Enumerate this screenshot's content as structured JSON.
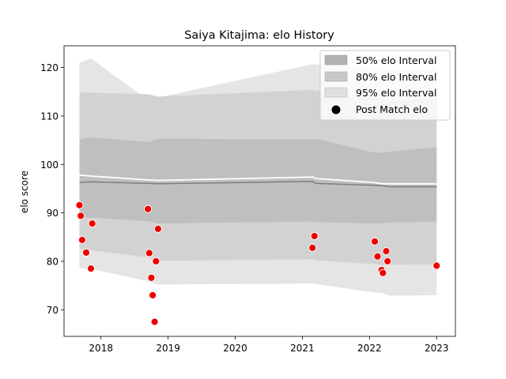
{
  "chart_data": {
    "type": "area",
    "title": "Saiya Kitajima: elo History",
    "xlabel": "",
    "ylabel": "elo score",
    "xlim": [
      2017.45,
      2023.28
    ],
    "ylim": [
      64.5,
      124.5
    ],
    "x_ticks": [
      2018,
      2019,
      2020,
      2021,
      2022,
      2023
    ],
    "x_tick_labels": [
      "2018",
      "2019",
      "2020",
      "2021",
      "2022",
      "2023"
    ],
    "y_ticks": [
      70,
      80,
      90,
      100,
      110,
      120
    ],
    "y_tick_labels": [
      "70",
      "80",
      "90",
      "100",
      "110",
      "120"
    ],
    "grid": false,
    "legend_position": "top-right",
    "x": [
      2017.68,
      2017.85,
      2018.7,
      2018.85,
      2021.15,
      2021.2,
      2022.05,
      2022.2,
      2022.3,
      2023.0
    ],
    "bands": [
      {
        "name": "95% elo Interval",
        "color": "#e5e5e5",
        "lower": [
          78.6,
          78.4,
          75.9,
          75.2,
          75.4,
          75.3,
          73.6,
          73.4,
          72.9,
          73.0
        ],
        "upper": [
          121.0,
          121.9,
          113.3,
          113.8,
          120.7,
          120.6,
          119.8,
          119.7,
          119.6,
          119.7
        ]
      },
      {
        "name": "80% elo Interval",
        "color": "#d2d2d2",
        "lower": [
          82.6,
          82.3,
          80.8,
          80.1,
          80.4,
          80.2,
          79.4,
          79.2,
          79.3,
          79.4
        ],
        "upper": [
          114.9,
          114.8,
          114.5,
          114.0,
          115.4,
          115.2,
          113.9,
          113.7,
          113.4,
          113.6
        ]
      },
      {
        "name": "50% elo Interval",
        "color": "#bfbfbf",
        "lower": [
          89.2,
          89.0,
          88.3,
          87.8,
          88.2,
          88.1,
          87.8,
          87.9,
          88.0,
          88.2
        ],
        "upper": [
          105.1,
          105.6,
          104.6,
          105.3,
          105.2,
          105.3,
          102.5,
          102.4,
          102.6,
          103.6
        ]
      }
    ],
    "median_line": {
      "color": "#7f7f7f",
      "y": [
        96.3,
        96.4,
        96.1,
        96.0,
        96.5,
        96.1,
        95.7,
        95.6,
        95.4,
        95.4
      ]
    },
    "mean_line": {
      "color": "#ffffff",
      "y": [
        97.8,
        97.6,
        96.8,
        96.7,
        97.4,
        97.1,
        96.3,
        96.0,
        96.0,
        96.0
      ]
    },
    "points": {
      "name": "Post Match elo",
      "color": "#ee0000",
      "x": [
        2017.68,
        2017.7,
        2017.72,
        2017.78,
        2017.85,
        2017.87,
        2018.7,
        2018.72,
        2018.75,
        2018.77,
        2018.8,
        2018.82,
        2018.85,
        2021.15,
        2021.18,
        2022.08,
        2022.12,
        2022.18,
        2022.2,
        2022.25,
        2022.27,
        2023.0
      ],
      "y": [
        91.6,
        89.4,
        84.4,
        81.8,
        78.5,
        87.8,
        90.8,
        81.7,
        76.6,
        73.0,
        67.5,
        80.0,
        86.7,
        82.8,
        85.2,
        84.1,
        81.0,
        78.2,
        77.6,
        82.1,
        80.0,
        79.1
      ]
    },
    "legend": [
      "50% elo Interval",
      "80% elo Interval",
      "95% elo Interval",
      "Post Match elo"
    ],
    "legend_colors": {
      "band50": "#b3b3b3",
      "band80": "#c8c8c8",
      "band95": "#e0e0e0",
      "point": "#000000"
    }
  }
}
